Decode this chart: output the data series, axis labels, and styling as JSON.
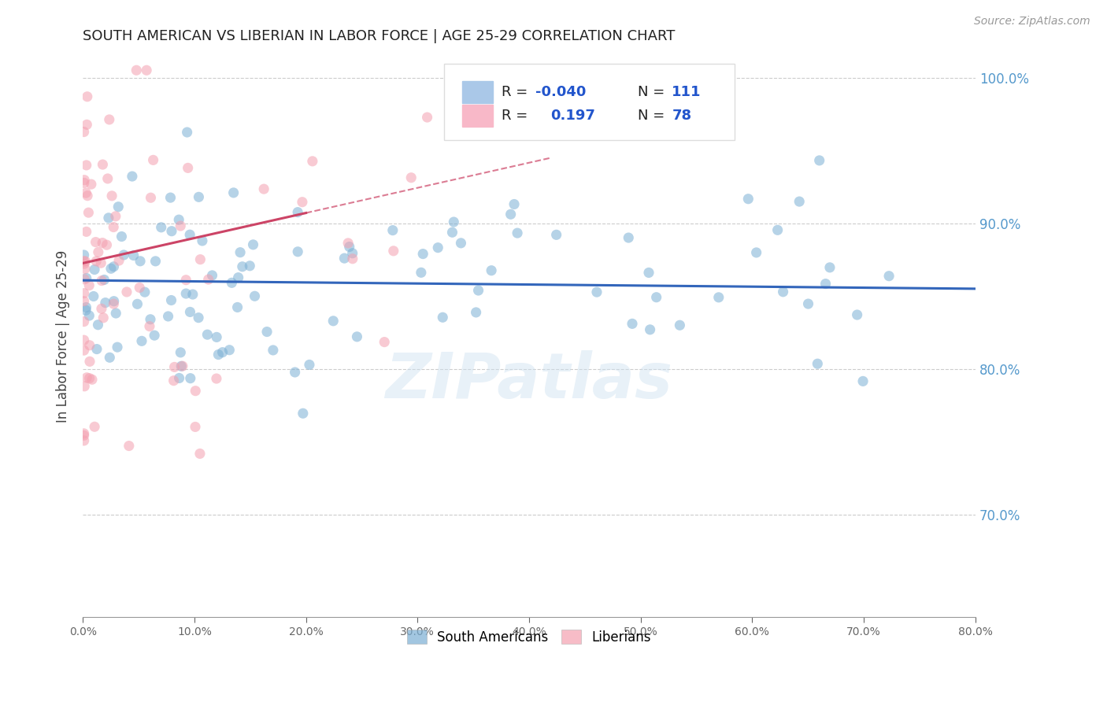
{
  "title": "SOUTH AMERICAN VS LIBERIAN IN LABOR FORCE | AGE 25-29 CORRELATION CHART",
  "source": "Source: ZipAtlas.com",
  "ylabel": "In Labor Force | Age 25-29",
  "watermark": "ZIPatlas",
  "blue_R": -0.04,
  "blue_N": 111,
  "pink_R": 0.197,
  "pink_N": 78,
  "xlim": [
    0.0,
    0.8
  ],
  "ylim": [
    0.63,
    1.015
  ],
  "yticks_right": [
    0.7,
    0.8,
    0.9,
    1.0
  ],
  "ytick_labels_right": [
    "70.0%",
    "80.0%",
    "90.0%",
    "100.0%"
  ],
  "grid_color": "#cccccc",
  "blue_color": "#7BAFD4",
  "pink_color": "#F4A0B0",
  "blue_line_color": "#3366BB",
  "pink_line_color": "#CC4466",
  "legend_label_blue": "South Americans",
  "legend_label_pink": "Liberians",
  "title_color": "#222222",
  "axis_label_color": "#444444",
  "right_axis_color": "#5599CC",
  "figsize": [
    14.06,
    8.92
  ],
  "dpi": 100
}
